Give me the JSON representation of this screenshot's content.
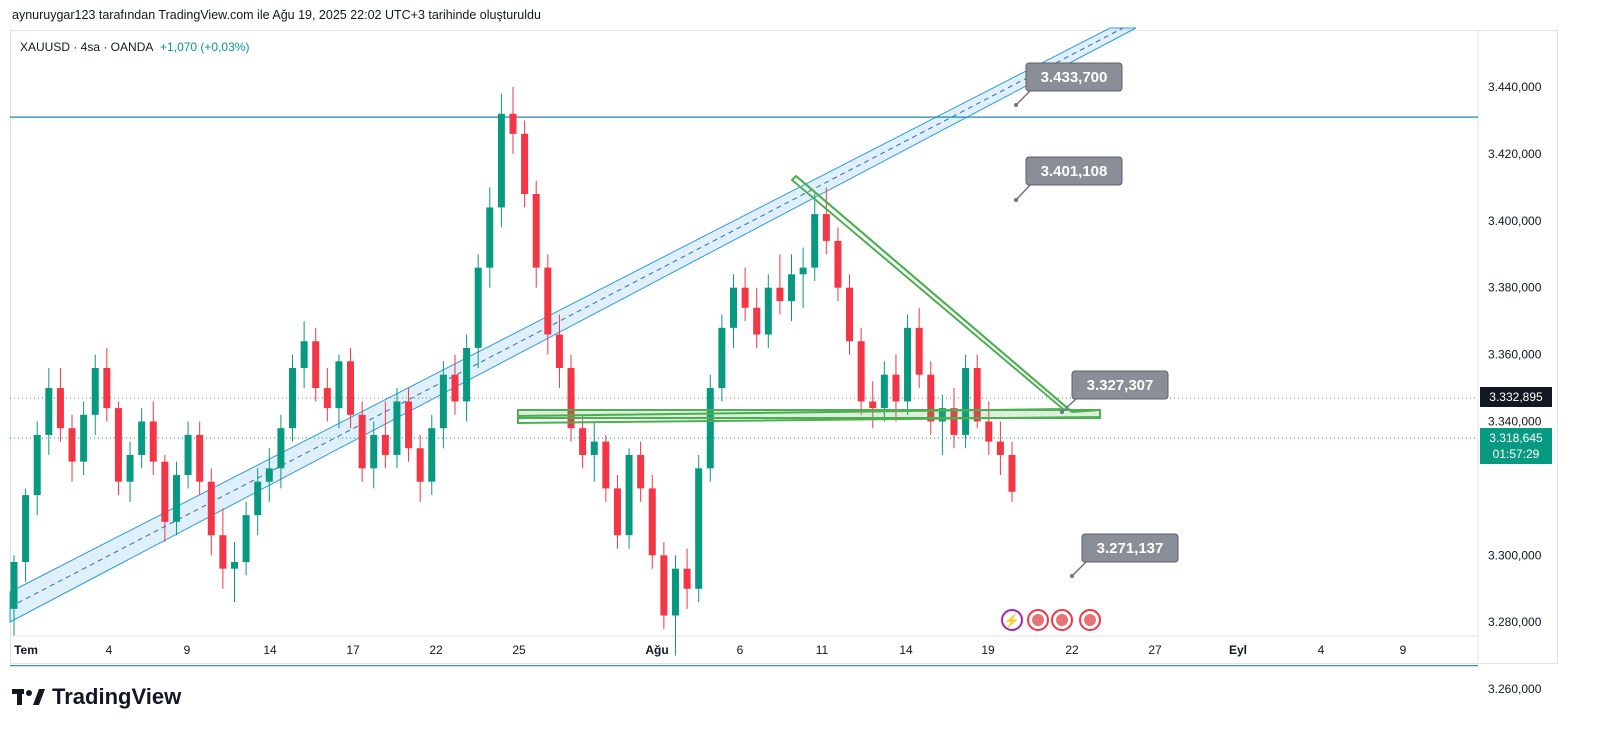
{
  "header": {
    "text": "aynuruygar123 tarafından TradingView.com ile Ağu 19, 2025 22:02 UTC+3 tarihinde oluşturuldu"
  },
  "symbol": {
    "name": "XAUUSD · 4sa · OANDA",
    "change": "+1,070 (+0,03%)"
  },
  "brand": {
    "name": "TradingView"
  },
  "colors": {
    "up": "#089981",
    "down": "#f23645",
    "channel": "#2d9cdb",
    "triangle": "#4caf50",
    "hline": "#1e88a8"
  },
  "chart_data": {
    "type": "candlestick",
    "title": "",
    "x_ticks": [
      "Tem",
      "4",
      "9",
      "14",
      "17",
      "22",
      "25",
      "Ağu",
      "6",
      "11",
      "14",
      "19",
      "22",
      "27",
      "Eyl",
      "4",
      "9"
    ],
    "y_ticks": [
      "3.440,000",
      "3.420,000",
      "3.400,000",
      "3.380,000",
      "3.360,000",
      "3.340,000",
      "3.300,000",
      "3.280,000",
      "3.260,000"
    ],
    "ylim": [
      3252,
      3463
    ],
    "last_price": "3.318,645",
    "countdown": "01:57:29",
    "crosshair_price": "3.332,895",
    "horizontal_levels": [
      3431,
      3267
    ],
    "annotations": [
      {
        "label": "3.433,700",
        "value": 3433.7
      },
      {
        "label": "3.401,108",
        "value": 3401.108
      },
      {
        "label": "3.327,307",
        "value": 3327.307
      },
      {
        "label": "3.271,137",
        "value": 3271.137
      }
    ],
    "candles": [
      [
        3284,
        3300,
        3276,
        3298
      ],
      [
        3298,
        3320,
        3292,
        3318
      ],
      [
        3318,
        3340,
        3312,
        3336
      ],
      [
        3336,
        3356,
        3330,
        3350
      ],
      [
        3350,
        3356,
        3334,
        3338
      ],
      [
        3338,
        3342,
        3322,
        3328
      ],
      [
        3328,
        3346,
        3324,
        3342
      ],
      [
        3342,
        3360,
        3336,
        3356
      ],
      [
        3356,
        3362,
        3340,
        3344
      ],
      [
        3344,
        3346,
        3318,
        3322
      ],
      [
        3322,
        3334,
        3316,
        3330
      ],
      [
        3330,
        3344,
        3326,
        3340
      ],
      [
        3340,
        3346,
        3324,
        3328
      ],
      [
        3328,
        3330,
        3304,
        3310
      ],
      [
        3310,
        3328,
        3306,
        3324
      ],
      [
        3324,
        3340,
        3320,
        3336
      ],
      [
        3336,
        3340,
        3318,
        3322
      ],
      [
        3322,
        3326,
        3300,
        3306
      ],
      [
        3306,
        3314,
        3290,
        3296
      ],
      [
        3296,
        3304,
        3286,
        3298
      ],
      [
        3298,
        3316,
        3294,
        3312
      ],
      [
        3312,
        3326,
        3306,
        3322
      ],
      [
        3322,
        3332,
        3316,
        3326
      ],
      [
        3326,
        3342,
        3320,
        3338
      ],
      [
        3338,
        3360,
        3334,
        3356
      ],
      [
        3356,
        3370,
        3350,
        3364
      ],
      [
        3364,
        3368,
        3346,
        3350
      ],
      [
        3350,
        3356,
        3340,
        3344
      ],
      [
        3344,
        3360,
        3338,
        3358
      ],
      [
        3358,
        3362,
        3338,
        3342
      ],
      [
        3342,
        3346,
        3322,
        3326
      ],
      [
        3326,
        3340,
        3320,
        3336
      ],
      [
        3336,
        3346,
        3326,
        3330
      ],
      [
        3330,
        3350,
        3326,
        3346
      ],
      [
        3346,
        3350,
        3328,
        3332
      ],
      [
        3332,
        3336,
        3316,
        3322
      ],
      [
        3322,
        3342,
        3318,
        3338
      ],
      [
        3338,
        3358,
        3332,
        3354
      ],
      [
        3354,
        3360,
        3342,
        3346
      ],
      [
        3346,
        3366,
        3340,
        3362
      ],
      [
        3362,
        3390,
        3356,
        3386
      ],
      [
        3386,
        3410,
        3380,
        3404
      ],
      [
        3404,
        3438,
        3398,
        3432
      ],
      [
        3432,
        3440,
        3420,
        3426
      ],
      [
        3426,
        3430,
        3404,
        3408
      ],
      [
        3408,
        3412,
        3380,
        3386
      ],
      [
        3386,
        3390,
        3360,
        3366
      ],
      [
        3366,
        3372,
        3350,
        3356
      ],
      [
        3356,
        3360,
        3334,
        3338
      ],
      [
        3338,
        3342,
        3326,
        3330
      ],
      [
        3330,
        3340,
        3322,
        3334
      ],
      [
        3334,
        3336,
        3316,
        3320
      ],
      [
        3320,
        3324,
        3302,
        3306
      ],
      [
        3306,
        3332,
        3302,
        3330
      ],
      [
        3330,
        3334,
        3316,
        3320
      ],
      [
        3320,
        3324,
        3296,
        3300
      ],
      [
        3300,
        3304,
        3278,
        3282
      ],
      [
        3282,
        3300,
        3270,
        3296
      ],
      [
        3296,
        3302,
        3284,
        3290
      ],
      [
        3290,
        3330,
        3286,
        3326
      ],
      [
        3326,
        3354,
        3322,
        3350
      ],
      [
        3350,
        3372,
        3346,
        3368
      ],
      [
        3368,
        3384,
        3362,
        3380
      ],
      [
        3380,
        3386,
        3370,
        3374
      ],
      [
        3374,
        3380,
        3362,
        3366
      ],
      [
        3366,
        3384,
        3362,
        3380
      ],
      [
        3380,
        3390,
        3372,
        3376
      ],
      [
        3376,
        3390,
        3370,
        3384
      ],
      [
        3384,
        3392,
        3374,
        3386
      ],
      [
        3386,
        3408,
        3382,
        3402
      ],
      [
        3402,
        3410,
        3390,
        3394
      ],
      [
        3394,
        3398,
        3376,
        3380
      ],
      [
        3380,
        3384,
        3360,
        3364
      ],
      [
        3364,
        3368,
        3342,
        3346
      ],
      [
        3346,
        3352,
        3338,
        3344
      ],
      [
        3344,
        3358,
        3340,
        3354
      ],
      [
        3354,
        3360,
        3340,
        3346
      ],
      [
        3346,
        3372,
        3342,
        3368
      ],
      [
        3368,
        3374,
        3350,
        3354
      ],
      [
        3354,
        3358,
        3336,
        3340
      ],
      [
        3340,
        3348,
        3330,
        3344
      ],
      [
        3344,
        3350,
        3332,
        3336
      ],
      [
        3336,
        3360,
        3332,
        3356
      ],
      [
        3356,
        3360,
        3338,
        3340
      ],
      [
        3340,
        3346,
        3330,
        3334
      ],
      [
        3334,
        3340,
        3324,
        3330
      ],
      [
        3330,
        3334,
        3316,
        3319
      ]
    ]
  }
}
